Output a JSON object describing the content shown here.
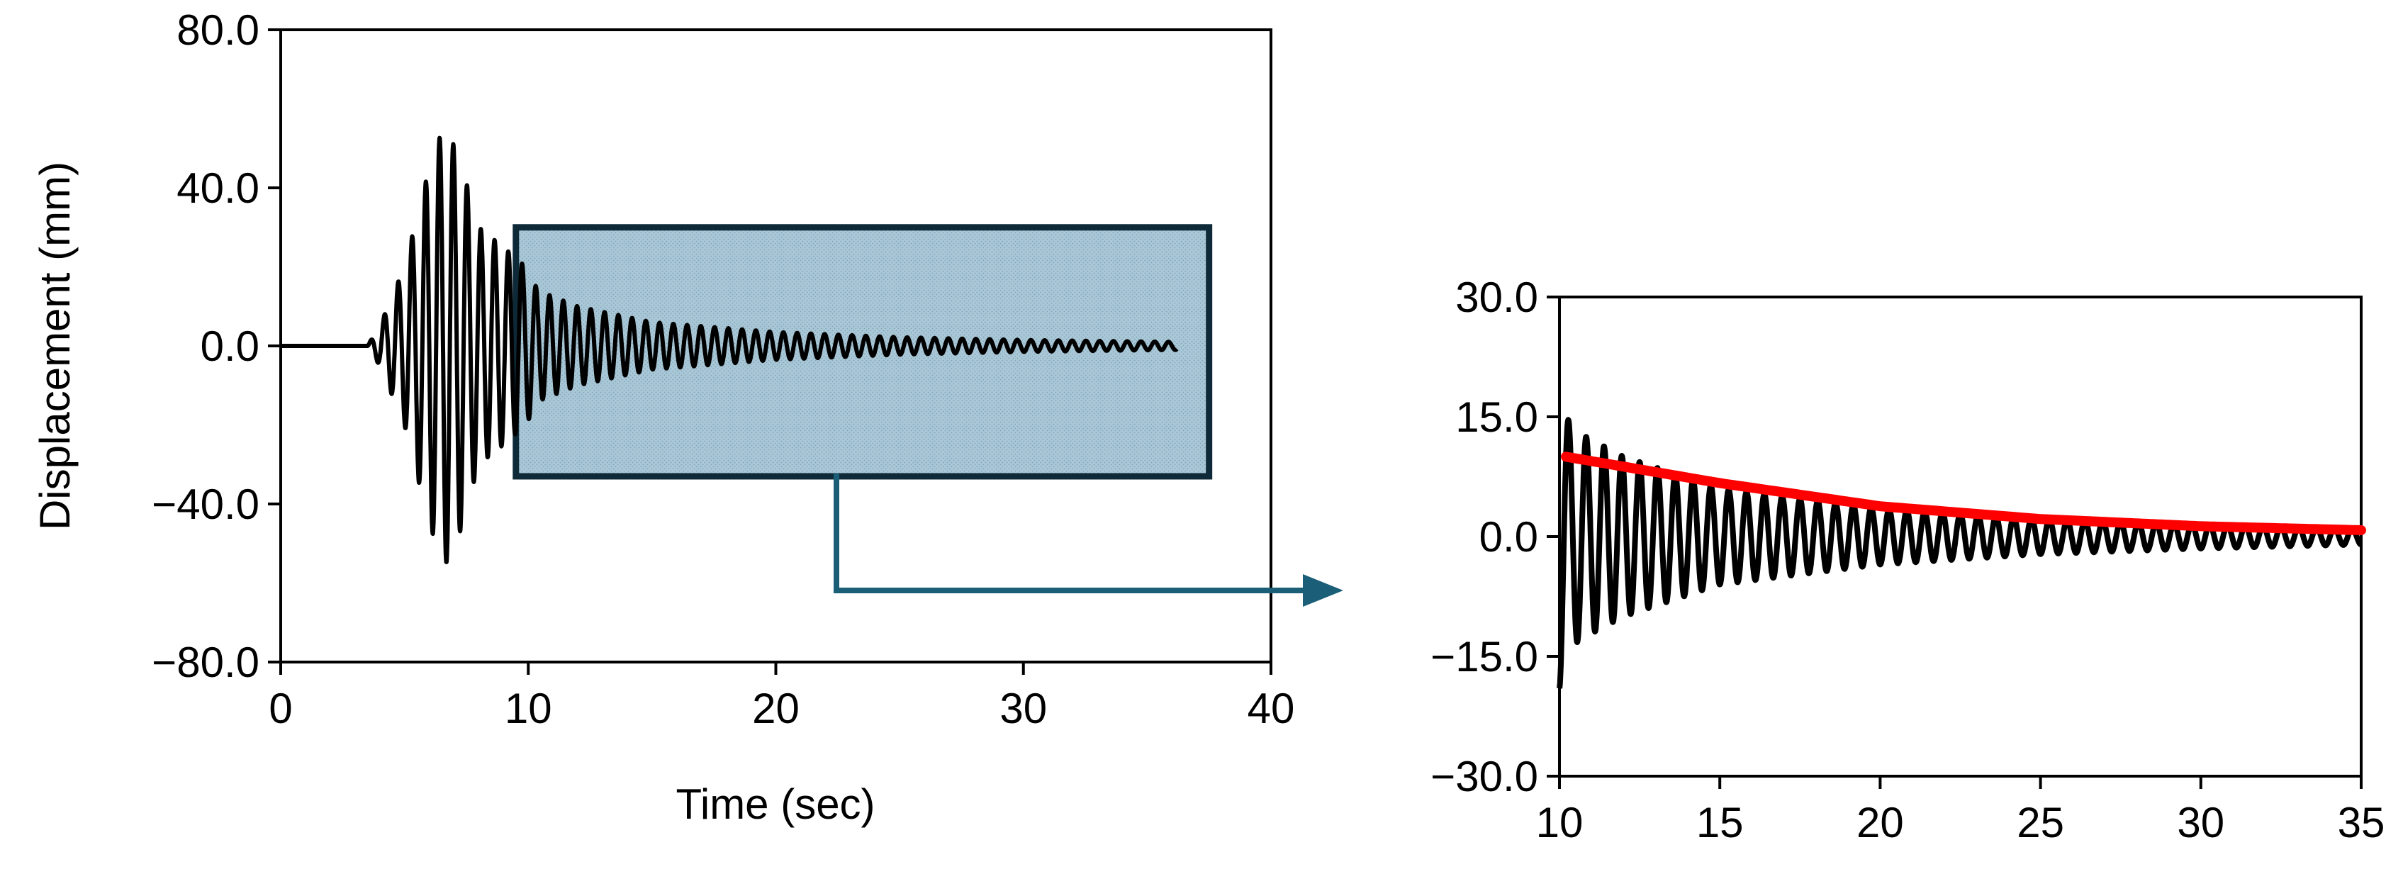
{
  "chart_data": [
    {
      "type": "line",
      "title": "",
      "xlabel": "Time (sec)",
      "ylabel": "Displacement (mm)",
      "xlim": [
        0,
        40
      ],
      "ylim": [
        -80,
        80
      ],
      "x_ticks": [
        0,
        10,
        20,
        30,
        40
      ],
      "x_tick_labels": [
        "0",
        "10",
        "20",
        "30",
        "40"
      ],
      "y_ticks": [
        80,
        40,
        0,
        -40,
        -80
      ],
      "y_tick_labels": [
        "80.0",
        "40.0",
        "0.0",
        "−40.0",
        "−80.0"
      ],
      "grid": false,
      "legend": "none",
      "series": [
        {
          "color": "#000000",
          "description_values": "displacement time history",
          "envelope": {
            "x": [
              0,
              3.5,
              4.0,
              5.0,
              6.0,
              6.6,
              7.2,
              8.0,
              9.0,
              9.9,
              10.4,
              12,
              15,
              20,
              25,
              30,
              36.2
            ],
            "y": [
              0,
              0,
              5,
              20,
              45,
              56,
              48,
              30,
              25,
              20,
              14,
              10,
              6,
              3.5,
              2.2,
              1.5,
              1.0
            ]
          },
          "frequency_hz": 1.8,
          "x_end": 36.2
        }
      ],
      "highlight_box": {
        "x0": 9.5,
        "x1": 37.5,
        "y0": -33,
        "y1": 30,
        "color": "#1a5e78"
      }
    },
    {
      "type": "line",
      "title": "",
      "xlabel": "",
      "ylabel": "",
      "xlim": [
        10,
        35
      ],
      "ylim": [
        -30,
        30
      ],
      "x_ticks": [
        10,
        15,
        20,
        25,
        30,
        35
      ],
      "x_tick_labels": [
        "10",
        "15",
        "20",
        "25",
        "30",
        "35"
      ],
      "y_ticks": [
        30,
        15,
        0,
        -15,
        -30
      ],
      "y_tick_labels": [
        "30.0",
        "15.0",
        "0.0",
        "−15.0",
        "−30.0"
      ],
      "grid": false,
      "legend": "none",
      "series": [
        {
          "color": "#000000",
          "envelope": {
            "x": [
              10,
              10.2,
              10.6,
              12,
              15,
              20,
              25,
              30,
              35
            ],
            "y": [
              19,
              15,
              13,
              10,
              6,
              3.5,
              2.2,
              1.5,
              1.0
            ]
          },
          "frequency_hz": 1.8
        },
        {
          "color": "#ff0000",
          "fit_curve": {
            "x": [
              10.2,
              15,
              20,
              25,
              30,
              35
            ],
            "y": [
              10,
              6.7,
              3.8,
              2.2,
              1.3,
              0.8
            ]
          }
        }
      ]
    }
  ],
  "arrow": {
    "color": "#1a5e78"
  }
}
